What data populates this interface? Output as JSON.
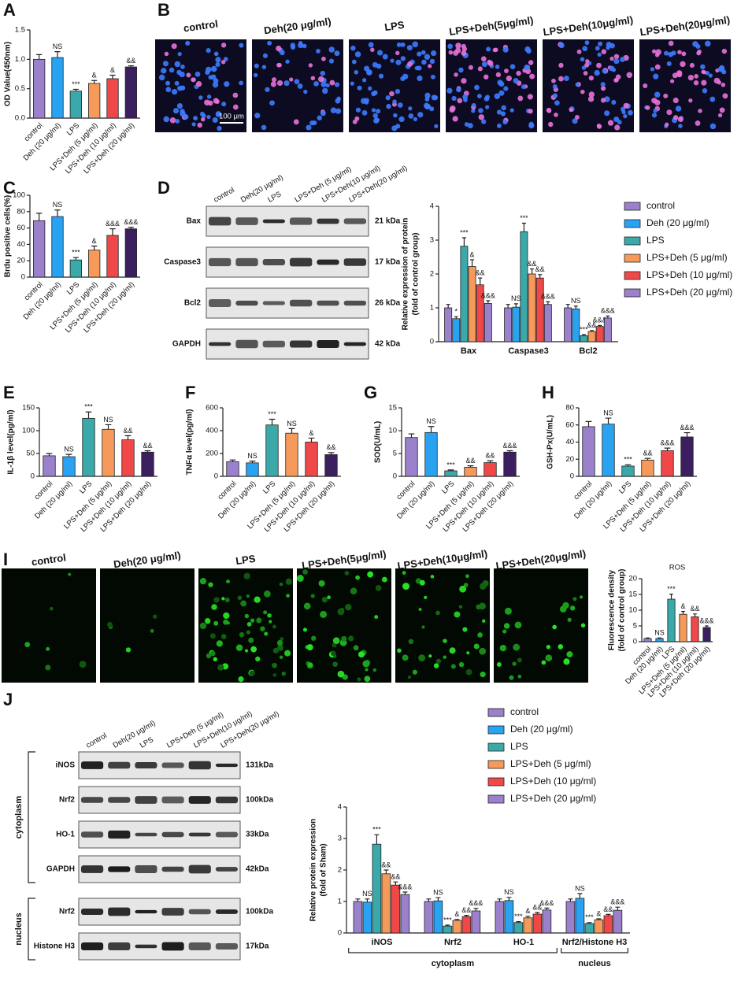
{
  "chart_data": [
    {
      "type": "bar",
      "label": "A",
      "ylabel": [
        "OD Value(450nm)"
      ],
      "categories": [
        "control",
        "Deh (20 μg/ml)",
        "LPS",
        "LPS+Deh (5 μg/ml)",
        "LPS+Deh (10 μg/ml)",
        "LPS+Deh (20 μg/ml)"
      ],
      "values": [
        1.0,
        1.03,
        0.46,
        0.59,
        0.67,
        0.87
      ],
      "errors": [
        0.08,
        0.1,
        0.03,
        0.05,
        0.06,
        0.02
      ],
      "annotations": [
        null,
        "NS",
        "***",
        "&",
        "&",
        "&&"
      ],
      "colors": [
        "#9b80cc",
        "#2aa2f2",
        "#3ba9a9",
        "#f59a5a",
        "#f04848",
        "#3b1f5e"
      ],
      "ylim": [
        0,
        1.5
      ],
      "yticks": [
        {
          "value": 0,
          "label": "0.0"
        },
        0.5,
        {
          "value": 1,
          "label": "1.0"
        },
        1.5
      ]
    },
    {
      "type": "bar",
      "label": "C",
      "ylabel": [
        "Brdu positive cells(%)"
      ],
      "categories": [
        "control",
        "Deh (20 μg/ml)",
        "LPS",
        "LPS+Deh (5 μg/ml)",
        "LPS+Deh (10 μg/ml)",
        "LPS+Deh (20 μg/ml)"
      ],
      "values": [
        69,
        74,
        21,
        33,
        51,
        59
      ],
      "errors": [
        9,
        8,
        3,
        5,
        8,
        2
      ],
      "annotations": [
        null,
        "NS",
        "***",
        "&",
        "&&&",
        "&&&"
      ],
      "colors": [
        "#9b80cc",
        "#2aa2f2",
        "#3ba9a9",
        "#f59a5a",
        "#f04848",
        "#3b1f5e"
      ],
      "ylim": [
        0,
        100
      ],
      "yticks": [
        0,
        20,
        40,
        60,
        80,
        100
      ]
    },
    {
      "type": "grouped",
      "label": "D",
      "ylabel": [
        "Relative expression of protein",
        "(fold of control group)"
      ],
      "categories": [
        "Bax",
        "Caspase3",
        "Bcl2"
      ],
      "series": [
        {
          "name": "control",
          "color": "#9b80cc",
          "values": [
            1.0,
            1.0,
            1.0
          ],
          "errors": [
            0.1,
            0.1,
            0.1
          ],
          "annotations": [
            null,
            null,
            null
          ]
        },
        {
          "name": "Deh (20 μg/ml)",
          "color": "#2aa2f2",
          "values": [
            0.68,
            1.02,
            0.97
          ],
          "errors": [
            0.06,
            0.1,
            0.08
          ],
          "annotations": [
            "*",
            "NS",
            "NS"
          ]
        },
        {
          "name": "LPS",
          "color": "#3ba9a9",
          "values": [
            2.82,
            3.25,
            0.18
          ],
          "errors": [
            0.25,
            0.25,
            0.03
          ],
          "annotations": [
            "***",
            "***",
            "***"
          ]
        },
        {
          "name": "LPS+Deh (5 μg/ml)",
          "color": "#f59a5a",
          "values": [
            2.22,
            2.0,
            0.3
          ],
          "errors": [
            0.2,
            0.15,
            0.03
          ],
          "annotations": [
            "&",
            "&&",
            "&&"
          ]
        },
        {
          "name": "LPS+Deh (10 μg/ml)",
          "color": "#f04848",
          "values": [
            1.68,
            1.88,
            0.45
          ],
          "errors": [
            0.2,
            0.1,
            0.03
          ],
          "annotations": [
            "&&",
            "&&",
            "&&&"
          ]
        },
        {
          "name": "LPS+Deh (20 μg/ml)",
          "color": "#9b80cc",
          "values": [
            1.13,
            1.1,
            0.7
          ],
          "errors": [
            0.08,
            0.08,
            0.06
          ],
          "annotations": [
            "&&&",
            "&&&",
            "&&&"
          ]
        }
      ],
      "ylim": [
        0,
        4
      ],
      "yticks": [
        0,
        1,
        2,
        3,
        4
      ]
    },
    {
      "type": "bar",
      "label": "E",
      "ylabel": [
        "IL-1β level(pg/ml)"
      ],
      "categories": [
        "control",
        "Deh (20 μg/ml)",
        "LPS",
        "LPS+Deh (5 μg/ml)",
        "LPS+Deh (10 μg/ml)",
        "LPS+Deh (20 μg/ml)"
      ],
      "values": [
        45,
        43,
        127,
        103,
        80,
        53
      ],
      "errors": [
        5,
        5,
        14,
        10,
        9,
        3
      ],
      "annotations": [
        null,
        "NS",
        "***",
        "NS",
        "&&",
        "&&"
      ],
      "colors": [
        "#9b80cc",
        "#2aa2f2",
        "#3ba9a9",
        "#f59a5a",
        "#f04848",
        "#3b1f5e"
      ],
      "ylim": [
        0,
        150
      ],
      "yticks": [
        0,
        50,
        100,
        150
      ]
    },
    {
      "type": "bar",
      "label": "F",
      "ylabel": [
        "TNFα level(pg/ml)"
      ],
      "categories": [
        "control",
        "Deh (20 μg/ml)",
        "LPS",
        "LPS+Deh (5 μg/ml)",
        "LPS+Deh (10 μg/ml)",
        "LPS+Deh (20 μg/ml)"
      ],
      "values": [
        128,
        118,
        450,
        378,
        300,
        190
      ],
      "errors": [
        15,
        15,
        50,
        40,
        35,
        18
      ],
      "annotations": [
        null,
        "NS",
        "***",
        "NS",
        "&",
        "&&"
      ],
      "colors": [
        "#9b80cc",
        "#2aa2f2",
        "#3ba9a9",
        "#f59a5a",
        "#f04848",
        "#3b1f5e"
      ],
      "ylim": [
        0,
        600
      ],
      "yticks": [
        0,
        200,
        400,
        600
      ]
    },
    {
      "type": "bar",
      "label": "G",
      "ylabel": [
        "SOD(U/mL)"
      ],
      "categories": [
        "control",
        "Deh (20 μg/ml)",
        "LPS",
        "LPS+Deh (5 μg/ml)",
        "LPS+Deh (10 μg/ml)",
        "LPS+Deh (20 μg/ml)"
      ],
      "values": [
        8.5,
        9.6,
        1.2,
        2.0,
        3.0,
        5.3
      ],
      "errors": [
        0.8,
        1.3,
        0.2,
        0.3,
        0.4,
        0.3
      ],
      "annotations": [
        null,
        "NS",
        "***",
        "&&",
        "&&",
        "&&&"
      ],
      "colors": [
        "#9b80cc",
        "#2aa2f2",
        "#3ba9a9",
        "#f59a5a",
        "#f04848",
        "#3b1f5e"
      ],
      "ylim": [
        0,
        15
      ],
      "yticks": [
        0,
        5,
        10,
        15
      ]
    },
    {
      "type": "bar",
      "label": "H",
      "ylabel": [
        "GSH-Px(U/mL)"
      ],
      "categories": [
        "control",
        "Deh (20 μg/ml)",
        "LPS",
        "LPS+Deh (5 μg/ml)",
        "LPS+Deh (10 μg/ml)",
        "LPS+Deh (20 μg/ml)"
      ],
      "values": [
        58,
        61,
        12,
        19,
        30,
        46
      ],
      "errors": [
        6,
        7,
        1.5,
        2,
        3,
        5
      ],
      "annotations": [
        null,
        "NS",
        "***",
        "&&",
        "&&&",
        "&&&"
      ],
      "colors": [
        "#9b80cc",
        "#2aa2f2",
        "#3ba9a9",
        "#f59a5a",
        "#f04848",
        "#3b1f5e"
      ],
      "ylim": [
        0,
        80
      ],
      "yticks": [
        0,
        20,
        40,
        60,
        80
      ]
    },
    {
      "type": "bar",
      "title": "ROS",
      "ylabel": [
        "Fluorescence density",
        "(fold of control group)"
      ],
      "categories": [
        "control",
        "Deh (20 μg/ml)",
        "LPS",
        "LPS+Deh (5 μg/ml)",
        "LPS+Deh (10 μg/ml)",
        "LPS+Deh (20 μg/ml)"
      ],
      "values": [
        1.0,
        1.0,
        13.5,
        8.7,
        7.9,
        4.5
      ],
      "errors": [
        0.2,
        0.2,
        1.6,
        0.9,
        0.9,
        0.5
      ],
      "annotations": [
        null,
        "NS",
        "***",
        "&",
        "&&",
        "&&&"
      ],
      "colors": [
        "#9b80cc",
        "#2aa2f2",
        "#3ba9a9",
        "#f59a5a",
        "#f04848",
        "#3b1f5e"
      ],
      "ylim": [
        0,
        20
      ],
      "yticks": [
        0,
        5,
        10,
        15,
        20
      ]
    },
    {
      "type": "grouped",
      "label": "J",
      "ylabel": [
        "Relative protein expression",
        "(fold of Sham)"
      ],
      "category_groups": [
        {
          "label": "cytoplasm",
          "categories": [
            "iNOS",
            "Nrf2",
            "HO-1"
          ]
        },
        {
          "label": "nucleus",
          "categories": [
            "Nrf2/Histone H3"
          ]
        }
      ],
      "series": [
        {
          "name": "control",
          "color": "#9b80cc",
          "values": [
            1.0,
            1.0,
            1.0,
            1.0
          ],
          "errors": [
            0.08,
            0.08,
            0.08,
            0.08
          ],
          "annotations": [
            null,
            null,
            null,
            null
          ]
        },
        {
          "name": "Deh (20 μg/ml)",
          "color": "#2aa2f2",
          "values": [
            0.98,
            1.02,
            1.03,
            1.1
          ],
          "errors": [
            0.1,
            0.1,
            0.1,
            0.15
          ],
          "annotations": [
            "NS",
            "NS",
            "NS",
            "NS"
          ]
        },
        {
          "name": "LPS",
          "color": "#3ba9a9",
          "values": [
            2.82,
            0.22,
            0.33,
            0.3
          ],
          "errors": [
            0.3,
            0.03,
            0.03,
            0.03
          ],
          "annotations": [
            "***",
            "***",
            "***",
            "***"
          ]
        },
        {
          "name": "LPS+Deh (5 μg/ml)",
          "color": "#f59a5a",
          "values": [
            1.88,
            0.4,
            0.48,
            0.42
          ],
          "errors": [
            0.12,
            0.03,
            0.05,
            0.03
          ],
          "annotations": [
            "&&",
            "&",
            "&",
            "&"
          ]
        },
        {
          "name": "LPS+Deh (10 μg/ml)",
          "color": "#f04848",
          "values": [
            1.52,
            0.52,
            0.6,
            0.55
          ],
          "errors": [
            0.1,
            0.04,
            0.05,
            0.04
          ],
          "annotations": [
            "&&",
            "&&",
            "&&",
            "&&"
          ]
        },
        {
          "name": "LPS+Deh (20 μg/ml)",
          "color": "#9b80cc",
          "values": [
            1.22,
            0.7,
            0.73,
            0.72
          ],
          "errors": [
            0.08,
            0.08,
            0.06,
            0.1
          ],
          "annotations": [
            "&&&",
            "&&&",
            "&&&",
            "&&&"
          ]
        }
      ],
      "ylim": [
        0,
        4
      ],
      "yticks": [
        0,
        1,
        2,
        3,
        4
      ]
    }
  ],
  "image_panels": [
    {
      "label": "B",
      "titles": [
        "control",
        "Deh(20 μg/ml)",
        "LPS",
        "LPS+Deh(5μg/ml)",
        "LPS+Deh(10μg/ml)",
        "LPS+Deh(20μg/ml)"
      ],
      "scale_bar": "100 μm"
    },
    {
      "label": "I",
      "titles": [
        "control",
        "Deh(20 μg/ml)",
        "LPS",
        "LPS+Deh(5μg/ml)",
        "LPS+Deh(10μg/ml)",
        "LPS+Deh(20μg/ml)"
      ]
    }
  ],
  "blots": [
    {
      "lanes": [
        "control",
        "Deh(20 μg/ml)",
        "LPS",
        "LPS+Deh (5 μg/ml)",
        "LPS+Deh(10 μg/ml)",
        "LPS+Deh(20 μg/ml)"
      ],
      "rows": [
        {
          "name": "Bax",
          "size": "21 kDa"
        },
        {
          "name": "Caspase3",
          "size": "17 kDa"
        },
        {
          "name": "Bcl2",
          "size": "26 kDa"
        },
        {
          "name": "GAPDH",
          "size": "42 kDa"
        }
      ]
    },
    {
      "lanes": [
        "control",
        "Deh(20 μg/ml)",
        "LPS",
        "LPS+Deh (5 μg/ml)",
        "LPS+Deh(10 μg/ml)",
        "LPS+Deh(20 μg/ml)"
      ],
      "groups": [
        {
          "label": "cytoplasm",
          "rows": [
            {
              "name": "iNOS",
              "size": "131kDa"
            },
            {
              "name": "Nrf2",
              "size": "100kDa"
            },
            {
              "name": "HO-1",
              "size": "33kDa"
            },
            {
              "name": "GAPDH",
              "size": "42kDa"
            }
          ]
        },
        {
          "label": "nucleus",
          "rows": [
            {
              "name": "Nrf2",
              "size": "100kDa"
            },
            {
              "name": "Histone H3",
              "size": "17kDa"
            }
          ]
        }
      ]
    }
  ]
}
